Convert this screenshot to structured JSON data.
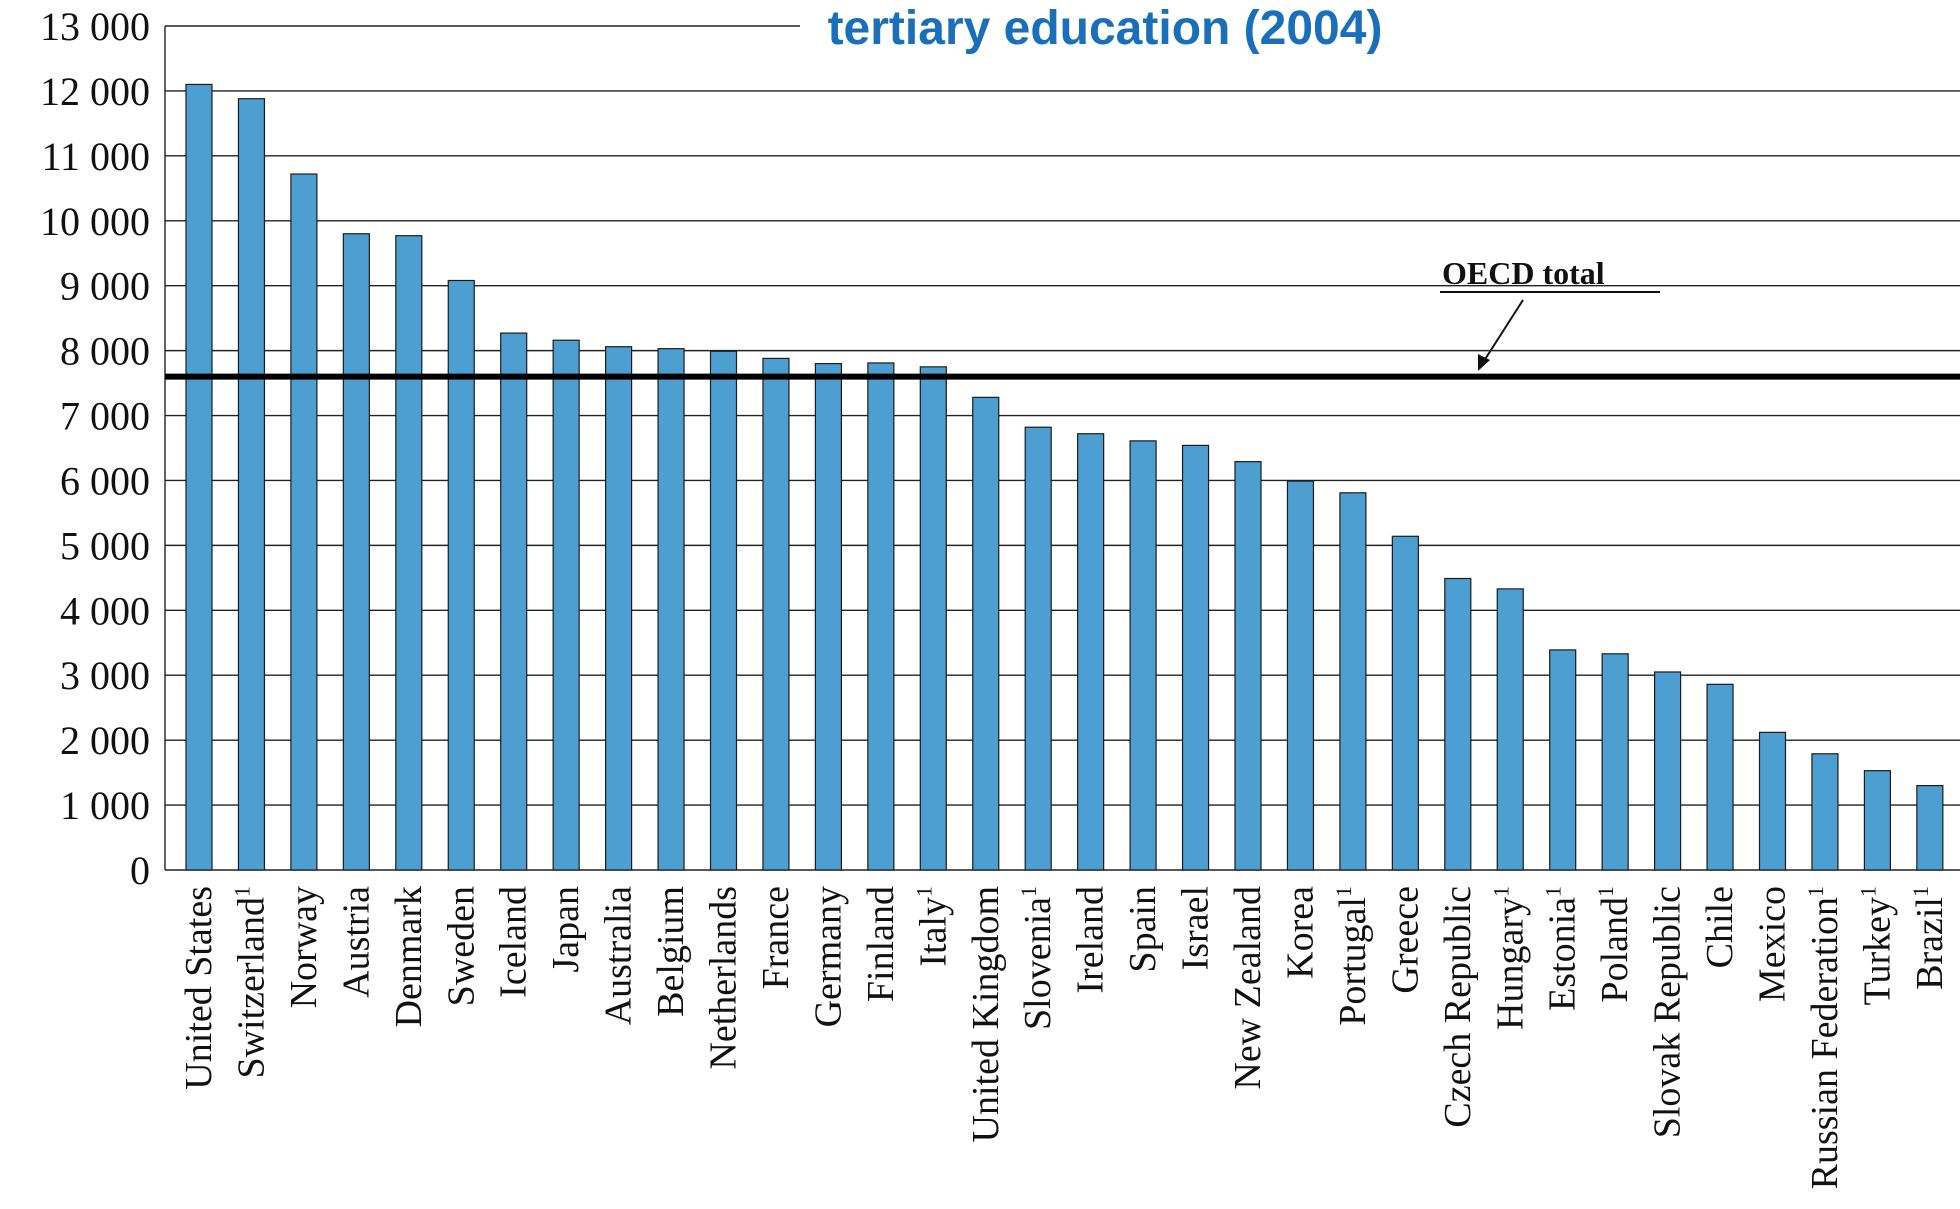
{
  "chart_data": {
    "type": "bar",
    "title": "tertiary education (2004)",
    "xlabel": "",
    "ylabel": "",
    "ylim": [
      0,
      13000
    ],
    "yticks": [
      0,
      1000,
      2000,
      3000,
      4000,
      5000,
      6000,
      7000,
      8000,
      9000,
      10000,
      11000,
      12000,
      13000
    ],
    "ytick_labels": [
      "0",
      "1 000",
      "2 000",
      "3 000",
      "4 000",
      "5 000",
      "6 000",
      "7 000",
      "8 000",
      "9 000",
      "10 000",
      "11 000",
      "12 000",
      "13 000"
    ],
    "grid": true,
    "categories": [
      "United States",
      "Switzerland",
      "Norway",
      "Austria",
      "Denmark",
      "Sweden",
      "Iceland",
      "Japan",
      "Australia",
      "Belgium",
      "Netherlands",
      "France",
      "Germany",
      "Finland",
      "Italy",
      "United Kingdom",
      "Slovenia",
      "Ireland",
      "Spain",
      "Israel",
      "New Zealand",
      "Korea",
      "Portugal",
      "Greece",
      "Czech Republic",
      "Hungary",
      "Estonia",
      "Poland",
      "Slovak Republic",
      "Chile",
      "Mexico",
      "Russian Federation",
      "Turkey",
      "Brazil"
    ],
    "footnote_marks": [
      "",
      "1",
      "",
      "",
      "",
      "",
      "",
      "",
      "",
      "",
      "",
      "",
      "",
      "",
      "1",
      "",
      "1",
      "",
      "",
      "",
      "",
      "",
      "1",
      "",
      "",
      "1",
      "1",
      "1",
      "",
      "",
      "",
      "1",
      "1",
      "1"
    ],
    "values": [
      12100,
      11880,
      10720,
      9800,
      9770,
      9080,
      8270,
      8160,
      8060,
      8030,
      7990,
      7880,
      7800,
      7810,
      7750,
      7280,
      6820,
      6720,
      6610,
      6540,
      6290,
      5990,
      5810,
      5140,
      4490,
      4330,
      3390,
      3330,
      3050,
      2860,
      2120,
      1790,
      1530,
      1300
    ],
    "reference_line": {
      "label": "OECD total",
      "value": 7600
    },
    "bar_color": "#4e9fd1",
    "title_color": "#1a6fba"
  }
}
